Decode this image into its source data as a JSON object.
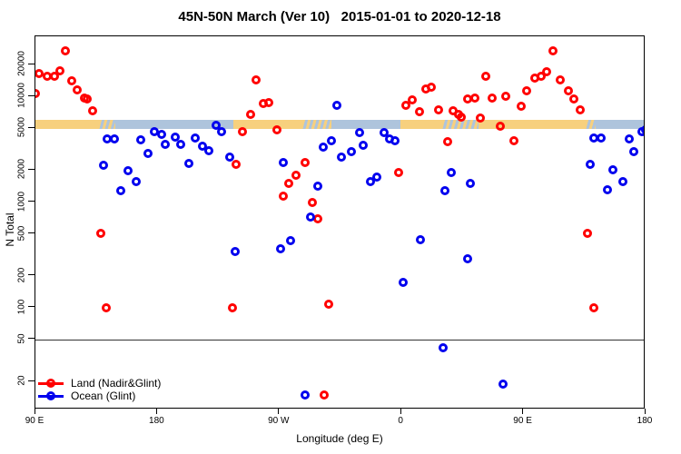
{
  "chart_data": {
    "type": "scatter",
    "title": "45N-50N March (Ver 10)   2015-01-01 to 2020-12-18",
    "xlabel": "Longitude (deg E)",
    "ylabel": "N Total",
    "x_axis": {
      "range": [
        90,
        540
      ],
      "ticks": [
        {
          "t": 90,
          "label": "90 E"
        },
        {
          "t": 180,
          "label": "180"
        },
        {
          "t": 270,
          "label": "90 W"
        },
        {
          "t": 360,
          "label": "0"
        },
        {
          "t": 450,
          "label": "90 E"
        },
        {
          "t": 540,
          "label": "180"
        }
      ]
    },
    "y_axis": {
      "scale": "log",
      "range": [
        11,
        33000
      ],
      "ticks": [
        20,
        50,
        100,
        200,
        500,
        1000,
        2000,
        5000,
        10000,
        20000
      ]
    },
    "reference_line_y": 50,
    "surface_strip": {
      "value_top": 6050,
      "value_bottom": 4870,
      "land_color": "#f7d07e",
      "ocean_color": "#aec4dc",
      "segments": [
        {
          "from": 90,
          "to": 137,
          "type": "land"
        },
        {
          "from": 137,
          "to": 149,
          "type": "mixed"
        },
        {
          "from": 149,
          "to": 236,
          "type": "ocean"
        },
        {
          "from": 236,
          "to": 287,
          "type": "land"
        },
        {
          "from": 287,
          "to": 308,
          "type": "mixed"
        },
        {
          "from": 308,
          "to": 359,
          "type": "ocean"
        },
        {
          "from": 359,
          "to": 390,
          "type": "land"
        },
        {
          "from": 390,
          "to": 417,
          "type": "mixed"
        },
        {
          "from": 417,
          "to": 496,
          "type": "land"
        },
        {
          "from": 496,
          "to": 503,
          "type": "mixed"
        },
        {
          "from": 503,
          "to": 540,
          "type": "ocean"
        }
      ]
    },
    "legend": {
      "position": "bottom-left"
    },
    "series": [
      {
        "name": "Land (Nadir&Glint)",
        "color": "#ff0000",
        "points": [
          [
            90,
            10700
          ],
          [
            93,
            16400
          ],
          [
            99,
            15400
          ],
          [
            104,
            15400
          ],
          [
            108,
            17300
          ],
          [
            112,
            27000
          ],
          [
            117,
            14100
          ],
          [
            121,
            11400
          ],
          [
            126,
            9700
          ],
          [
            128,
            9400
          ],
          [
            132,
            7300
          ],
          [
            138,
            505
          ],
          [
            142,
            100
          ],
          [
            235,
            100
          ],
          [
            238,
            2260
          ],
          [
            243,
            4600
          ],
          [
            249,
            6700
          ],
          [
            253,
            14400
          ],
          [
            258,
            8500
          ],
          [
            262,
            8800
          ],
          [
            268,
            4800
          ],
          [
            273,
            1140
          ],
          [
            277,
            1490
          ],
          [
            282,
            1790
          ],
          [
            289,
            2370
          ],
          [
            294,
            1000
          ],
          [
            298,
            690
          ],
          [
            303,
            15
          ],
          [
            306,
            107
          ],
          [
            358,
            1890
          ],
          [
            363,
            8200
          ],
          [
            368,
            9200
          ],
          [
            373,
            7100
          ],
          [
            378,
            11800
          ],
          [
            382,
            12200
          ],
          [
            387,
            7400
          ],
          [
            394,
            3760
          ],
          [
            398,
            7300
          ],
          [
            402,
            6700
          ],
          [
            404,
            6300
          ],
          [
            409,
            9400
          ],
          [
            414,
            9700
          ],
          [
            418,
            6200
          ],
          [
            422,
            15400
          ],
          [
            427,
            9700
          ],
          [
            433,
            5200
          ],
          [
            437,
            10100
          ],
          [
            443,
            3800
          ],
          [
            448,
            8100
          ],
          [
            452,
            11200
          ],
          [
            458,
            15000
          ],
          [
            463,
            15400
          ],
          [
            467,
            17200
          ],
          [
            472,
            27000
          ],
          [
            477,
            14400
          ],
          [
            483,
            11200
          ],
          [
            487,
            9500
          ],
          [
            492,
            7400
          ],
          [
            497,
            505
          ],
          [
            502,
            100
          ]
        ]
      },
      {
        "name": "Ocean (Glint)",
        "color": "#0000ee",
        "points": [
          [
            140,
            2210
          ],
          [
            143,
            3960
          ],
          [
            148,
            3960
          ],
          [
            153,
            1270
          ],
          [
            158,
            1980
          ],
          [
            164,
            1550
          ],
          [
            168,
            3900
          ],
          [
            173,
            2880
          ],
          [
            178,
            4600
          ],
          [
            183,
            4400
          ],
          [
            186,
            3480
          ],
          [
            193,
            4100
          ],
          [
            197,
            3500
          ],
          [
            203,
            2340
          ],
          [
            208,
            4000
          ],
          [
            213,
            3360
          ],
          [
            218,
            3080
          ],
          [
            223,
            5300
          ],
          [
            227,
            4600
          ],
          [
            233,
            2660
          ],
          [
            237,
            340
          ],
          [
            271,
            360
          ],
          [
            273,
            2370
          ],
          [
            278,
            430
          ],
          [
            289,
            15
          ],
          [
            293,
            720
          ],
          [
            298,
            1400
          ],
          [
            302,
            3300
          ],
          [
            308,
            3800
          ],
          [
            312,
            8200
          ],
          [
            316,
            2650
          ],
          [
            323,
            2990
          ],
          [
            329,
            4520
          ],
          [
            332,
            3430
          ],
          [
            337,
            1570
          ],
          [
            342,
            1740
          ],
          [
            347,
            4520
          ],
          [
            351,
            3950
          ],
          [
            355,
            3800
          ],
          [
            361,
            175
          ],
          [
            374,
            440
          ],
          [
            391,
            42
          ],
          [
            392,
            1280
          ],
          [
            397,
            1900
          ],
          [
            409,
            290
          ],
          [
            411,
            1500
          ],
          [
            435,
            19
          ],
          [
            499,
            2270
          ],
          [
            502,
            4000
          ],
          [
            507,
            4000
          ],
          [
            512,
            1300
          ],
          [
            516,
            2030
          ],
          [
            523,
            1560
          ],
          [
            528,
            3930
          ],
          [
            531,
            3020
          ],
          [
            537,
            4600
          ],
          [
            540,
            4800
          ]
        ]
      }
    ]
  }
}
